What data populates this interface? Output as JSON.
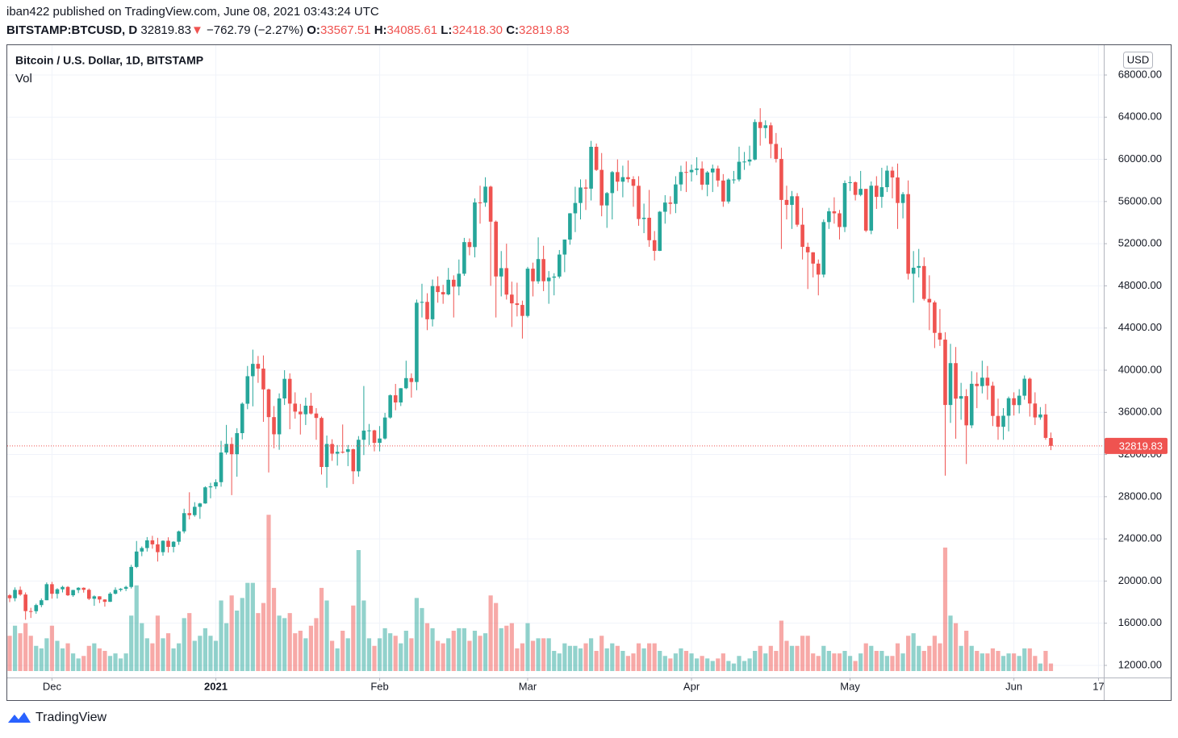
{
  "header": {
    "published": "iban422 published on TradingView.com, June 08, 2021 03:43:24 UTC",
    "symbol": "BITSTAMP:BTCUSD, D",
    "arrow": "▼",
    "change": "−762.79 (−2.27%)",
    "o_label": "O:",
    "h_label": "H:",
    "l_label": "L:",
    "c_label": "C:"
  },
  "chart_data": {
    "type": "candlestick",
    "title": "Bitcoin / U.S. Dollar, 1D, BITSTAMP",
    "volume_title": "Vol",
    "currency": "USD",
    "up_color": "#26a69a",
    "down_color": "#ef5350",
    "volume_opacity": 0.5,
    "grid": true,
    "ylim": [
      10850,
      70830
    ],
    "yticks": [
      {
        "value": 12000,
        "label": "12000.00"
      },
      {
        "value": 16000,
        "label": "16000.00"
      },
      {
        "value": 20000,
        "label": "20000.00"
      },
      {
        "value": 24000,
        "label": "24000.00"
      },
      {
        "value": 28000,
        "label": "28000.00"
      },
      {
        "value": 32000,
        "label": "32000.00"
      },
      {
        "value": 36000,
        "label": "36000.00"
      },
      {
        "value": 40000,
        "label": "40000.00"
      },
      {
        "value": 44000,
        "label": "44000.00"
      },
      {
        "value": 48000,
        "label": "48000.00"
      },
      {
        "value": 52000,
        "label": "52000.00"
      },
      {
        "value": 56000,
        "label": "56000.00"
      },
      {
        "value": 60000,
        "label": "60000.00"
      },
      {
        "value": 64000,
        "label": "64000.00"
      },
      {
        "value": 68000,
        "label": "68000.00"
      }
    ],
    "xlim": [
      -0.46,
      207
    ],
    "xticks": [
      {
        "value": 8,
        "label": "Dec"
      },
      {
        "value": 39,
        "label": "2021",
        "bold": true
      },
      {
        "value": 70,
        "label": "Feb"
      },
      {
        "value": 98,
        "label": "Mar"
      },
      {
        "value": 129,
        "label": "Apr"
      },
      {
        "value": 159,
        "label": "May"
      },
      {
        "value": 190,
        "label": "Jun"
      },
      {
        "value": 206,
        "label": "17"
      }
    ],
    "volume_lim": [
      0,
      40000
    ],
    "last_value_labels": [
      "33567.51",
      "34085.61",
      "32418.30",
      "32819.83"
    ],
    "candles": [
      [
        18650,
        18760,
        18000,
        18370
      ],
      [
        18370,
        19400,
        18080,
        19160
      ],
      [
        19160,
        19480,
        18600,
        18720
      ],
      [
        18720,
        18920,
        16330,
        17150
      ],
      [
        17150,
        17460,
        16500,
        17140
      ],
      [
        17140,
        17850,
        16900,
        17720
      ],
      [
        17720,
        18350,
        17520,
        18180
      ],
      [
        18180,
        19870,
        18180,
        19700
      ],
      [
        19700,
        19920,
        18330,
        18790
      ],
      [
        18790,
        19320,
        18340,
        19220
      ],
      [
        19220,
        19550,
        18920,
        19440
      ],
      [
        19440,
        19520,
        18580,
        18650
      ],
      [
        18650,
        19170,
        18500,
        19150
      ],
      [
        19150,
        19420,
        18860,
        19360
      ],
      [
        19360,
        19400,
        18900,
        19170
      ],
      [
        19170,
        19290,
        18200,
        18320
      ],
      [
        18320,
        18640,
        17650,
        18550
      ],
      [
        18550,
        18560,
        17910,
        18250
      ],
      [
        18250,
        18280,
        17570,
        18030
      ],
      [
        18030,
        18940,
        18020,
        18800
      ],
      [
        18800,
        19400,
        18730,
        19160
      ],
      [
        19160,
        19330,
        19000,
        19270
      ],
      [
        19270,
        19550,
        19050,
        19440
      ],
      [
        19440,
        21540,
        19290,
        21340
      ],
      [
        21340,
        23800,
        21230,
        22800
      ],
      [
        22800,
        23280,
        22360,
        23130
      ],
      [
        23130,
        24170,
        22800,
        23860
      ],
      [
        23860,
        24290,
        23070,
        23480
      ],
      [
        23480,
        24100,
        21850,
        22740
      ],
      [
        22740,
        23860,
        22400,
        23820
      ],
      [
        23820,
        24150,
        22700,
        23240
      ],
      [
        23240,
        23790,
        22720,
        23730
      ],
      [
        23730,
        24790,
        23430,
        24710
      ],
      [
        24710,
        26860,
        24520,
        26440
      ],
      [
        26440,
        28420,
        25850,
        26250
      ],
      [
        26250,
        27480,
        26100,
        27040
      ],
      [
        27040,
        27420,
        25900,
        27360
      ],
      [
        27360,
        28990,
        27330,
        28890
      ],
      [
        28890,
        29320,
        27850,
        28980
      ],
      [
        28980,
        29650,
        28730,
        29380
      ],
      [
        29380,
        33300,
        28950,
        32190
      ],
      [
        32190,
        34810,
        32000,
        33000
      ],
      [
        33000,
        33620,
        28150,
        32030
      ],
      [
        32030,
        34500,
        29900,
        34030
      ],
      [
        34030,
        36950,
        33440,
        36820
      ],
      [
        36820,
        40400,
        36300,
        39430
      ],
      [
        39430,
        41950,
        36570,
        40600
      ],
      [
        40600,
        41350,
        38800,
        40150
      ],
      [
        40150,
        41400,
        35100,
        38180
      ],
      [
        38180,
        38250,
        30300,
        35550
      ],
      [
        35550,
        36600,
        32600,
        33920
      ],
      [
        33920,
        37800,
        32450,
        37320
      ],
      [
        37320,
        40000,
        36700,
        39180
      ],
      [
        39180,
        39700,
        34400,
        36830
      ],
      [
        36830,
        37900,
        35400,
        36070
      ],
      [
        36070,
        36800,
        33900,
        35820
      ],
      [
        35820,
        37400,
        34800,
        36630
      ],
      [
        36630,
        37850,
        35800,
        35890
      ],
      [
        35890,
        36400,
        33400,
        35470
      ],
      [
        35470,
        35600,
        30100,
        30820
      ],
      [
        30820,
        33800,
        28850,
        33000
      ],
      [
        33000,
        33450,
        31400,
        32080
      ],
      [
        32080,
        32900,
        30950,
        32260
      ],
      [
        32260,
        34850,
        32100,
        32250
      ],
      [
        32250,
        32900,
        30900,
        32500
      ],
      [
        32500,
        32560,
        29200,
        30410
      ],
      [
        30410,
        33750,
        29900,
        33400
      ],
      [
        33400,
        38500,
        31950,
        34270
      ],
      [
        34270,
        34900,
        32900,
        34290
      ],
      [
        34290,
        34350,
        32300,
        33110
      ],
      [
        33110,
        34700,
        32300,
        33520
      ],
      [
        33520,
        35950,
        33420,
        35510
      ],
      [
        35510,
        37700,
        35400,
        37620
      ],
      [
        37620,
        38700,
        36200,
        36940
      ],
      [
        36940,
        38300,
        36600,
        38290
      ],
      [
        38290,
        40900,
        38200,
        39250
      ],
      [
        39250,
        39700,
        37400,
        38880
      ],
      [
        38880,
        46700,
        38100,
        46400
      ],
      [
        46400,
        48200,
        45000,
        46480
      ],
      [
        46480,
        47300,
        43800,
        44830
      ],
      [
        44830,
        48600,
        44150,
        47980
      ],
      [
        47980,
        48900,
        46400,
        47410
      ],
      [
        47410,
        48100,
        46300,
        47190
      ],
      [
        47190,
        49700,
        47100,
        48580
      ],
      [
        48580,
        49000,
        45000,
        47930
      ],
      [
        47930,
        50500,
        47100,
        49150
      ],
      [
        49150,
        52550,
        48950,
        52150
      ],
      [
        52150,
        52500,
        50900,
        51680
      ],
      [
        51680,
        56300,
        50700,
        55910
      ],
      [
        55910,
        57500,
        53900,
        55890
      ],
      [
        55890,
        58300,
        55500,
        57410
      ],
      [
        57410,
        57500,
        48000,
        54090
      ],
      [
        54090,
        54200,
        45000,
        48890
      ],
      [
        48890,
        51300,
        47000,
        49680
      ],
      [
        49680,
        52000,
        46700,
        47170
      ],
      [
        47170,
        48400,
        44100,
        46340
      ],
      [
        46340,
        48300,
        45100,
        46190
      ],
      [
        46190,
        46600,
        43000,
        45150
      ],
      [
        45150,
        49800,
        45000,
        49630
      ],
      [
        49630,
        50200,
        47000,
        48430
      ],
      [
        48430,
        52600,
        48200,
        50540
      ],
      [
        50540,
        51800,
        47500,
        48440
      ],
      [
        48440,
        49400,
        46300,
        48780
      ],
      [
        48780,
        49200,
        47100,
        48880
      ],
      [
        48880,
        51400,
        48700,
        50970
      ],
      [
        50970,
        52400,
        49300,
        52390
      ],
      [
        52390,
        54900,
        51900,
        54880
      ],
      [
        54880,
        57400,
        53100,
        55860
      ],
      [
        55860,
        58100,
        54300,
        57330
      ],
      [
        57330,
        58100,
        55200,
        57220
      ],
      [
        57220,
        61750,
        56100,
        61190
      ],
      [
        61190,
        61500,
        58900,
        59000
      ],
      [
        59000,
        60600,
        54600,
        55630
      ],
      [
        55630,
        56900,
        53500,
        56800
      ],
      [
        56800,
        58900,
        54300,
        58790
      ],
      [
        58790,
        60000,
        57000,
        57880
      ],
      [
        57880,
        59400,
        56400,
        58310
      ],
      [
        58310,
        59900,
        57800,
        58120
      ],
      [
        58120,
        58400,
        55500,
        57490
      ],
      [
        57490,
        58400,
        53700,
        54340
      ],
      [
        54340,
        55800,
        53000,
        54460
      ],
      [
        54460,
        57100,
        51700,
        52330
      ],
      [
        52330,
        53200,
        50400,
        51320
      ],
      [
        51320,
        55100,
        51300,
        55030
      ],
      [
        55030,
        56600,
        53900,
        55900
      ],
      [
        55900,
        56500,
        54800,
        55780
      ],
      [
        55780,
        58400,
        54900,
        57620
      ],
      [
        57620,
        59400,
        57000,
        58800
      ],
      [
        58800,
        59800,
        56900,
        58780
      ],
      [
        58780,
        59500,
        57900,
        59000
      ],
      [
        59000,
        60200,
        58500,
        59130
      ],
      [
        59130,
        59800,
        57100,
        57600
      ],
      [
        57600,
        58900,
        56500,
        58760
      ],
      [
        58760,
        59500,
        56900,
        59130
      ],
      [
        59130,
        59400,
        57400,
        57990
      ],
      [
        57990,
        58600,
        55500,
        56000
      ],
      [
        56000,
        58200,
        55800,
        58080
      ],
      [
        58080,
        58900,
        57700,
        58090
      ],
      [
        58090,
        61200,
        57900,
        59770
      ],
      [
        59770,
        60700,
        59000,
        59790
      ],
      [
        59790,
        61300,
        59400,
        59980
      ],
      [
        59980,
        63800,
        59900,
        63540
      ],
      [
        63540,
        64850,
        61300,
        62970
      ],
      [
        62970,
        63700,
        62000,
        63230
      ],
      [
        63230,
        63500,
        60100,
        61460
      ],
      [
        61460,
        62500,
        59700,
        60040
      ],
      [
        60040,
        61100,
        51500,
        56150
      ],
      [
        56150,
        57500,
        54300,
        55680
      ],
      [
        55680,
        57000,
        53400,
        56500
      ],
      [
        56500,
        56800,
        53600,
        53800
      ],
      [
        53800,
        55400,
        50500,
        51700
      ],
      [
        51700,
        52100,
        47700,
        51180
      ],
      [
        51180,
        51200,
        48800,
        50110
      ],
      [
        50110,
        50500,
        47100,
        49070
      ],
      [
        49070,
        54300,
        48800,
        54050
      ],
      [
        54050,
        55400,
        53400,
        55070
      ],
      [
        55070,
        56400,
        53900,
        54880
      ],
      [
        54880,
        55200,
        52400,
        53580
      ],
      [
        53580,
        58000,
        53100,
        57750
      ],
      [
        57750,
        58400,
        57000,
        57830
      ],
      [
        57830,
        57900,
        56100,
        56630
      ],
      [
        56630,
        58900,
        56500,
        57200
      ],
      [
        57200,
        57200,
        53100,
        53240
      ],
      [
        53240,
        57900,
        52900,
        57500
      ],
      [
        57500,
        58400,
        55300,
        56440
      ],
      [
        56440,
        59200,
        55400,
        57360
      ],
      [
        57360,
        59400,
        56900,
        58930
      ],
      [
        58930,
        59300,
        56300,
        58280
      ],
      [
        58280,
        59600,
        53400,
        55860
      ],
      [
        55860,
        56900,
        54400,
        56700
      ],
      [
        56700,
        58000,
        48600,
        49150
      ],
      [
        49150,
        51300,
        46400,
        49720
      ],
      [
        49720,
        51500,
        48800,
        49880
      ],
      [
        49880,
        50700,
        46600,
        46760
      ],
      [
        46760,
        49000,
        43800,
        46430
      ],
      [
        46430,
        46600,
        42100,
        43540
      ],
      [
        43540,
        45800,
        42300,
        42900
      ],
      [
        42900,
        43600,
        30000,
        36700
      ],
      [
        36700,
        42500,
        35000,
        40670
      ],
      [
        40670,
        42200,
        33500,
        37300
      ],
      [
        37300,
        38800,
        35300,
        37540
      ],
      [
        37540,
        38200,
        31100,
        34770
      ],
      [
        34770,
        39900,
        34500,
        38710
      ],
      [
        38710,
        39800,
        36400,
        38490
      ],
      [
        38490,
        40900,
        37800,
        39290
      ],
      [
        39290,
        40400,
        37200,
        38530
      ],
      [
        38530,
        38900,
        34700,
        35660
      ],
      [
        35660,
        37300,
        33400,
        34630
      ],
      [
        34630,
        36400,
        33400,
        35680
      ],
      [
        35680,
        37500,
        34200,
        37340
      ],
      [
        37340,
        37900,
        35700,
        36690
      ],
      [
        36690,
        38200,
        35900,
        37580
      ],
      [
        37580,
        39500,
        37200,
        39190
      ],
      [
        39190,
        39300,
        35600,
        36840
      ],
      [
        36840,
        37900,
        34800,
        35520
      ],
      [
        35520,
        36500,
        35300,
        35800
      ],
      [
        35800,
        36800,
        33400,
        33580
      ],
      [
        33567.51,
        34085.61,
        32418.3,
        32819.83
      ]
    ],
    "volume": [
      7000,
      9000,
      7500,
      9500,
      7000,
      5000,
      4500,
      6500,
      9000,
      6000,
      4500,
      5500,
      3500,
      2500,
      3000,
      5000,
      5500,
      4500,
      4000,
      3000,
      3500,
      2500,
      3500,
      11000,
      17000,
      9500,
      6500,
      5500,
      11000,
      6500,
      7500,
      4500,
      5500,
      10500,
      11500,
      6000,
      7000,
      8500,
      7000,
      6000,
      14000,
      9500,
      15000,
      12000,
      14500,
      17500,
      17500,
      11500,
      13500,
      31000,
      16500,
      11000,
      10500,
      11500,
      7500,
      8000,
      6500,
      9000,
      10500,
      16500,
      14000,
      6000,
      4500,
      8000,
      6500,
      13000,
      24000,
      14000,
      6500,
      5000,
      6500,
      8500,
      7500,
      7000,
      5500,
      8000,
      6500,
      14500,
      12500,
      9500,
      8500,
      6000,
      5500,
      6500,
      8000,
      8500,
      8500,
      6000,
      8000,
      7000,
      7500,
      15000,
      13500,
      8500,
      9000,
      9500,
      4500,
      5500,
      9500,
      6000,
      6500,
      6500,
      6500,
      4000,
      3500,
      5500,
      5000,
      5000,
      4500,
      5500,
      6500,
      4000,
      7000,
      4500,
      5500,
      5000,
      4000,
      3000,
      3500,
      5500,
      4500,
      5500,
      5500,
      4000,
      3000,
      2500,
      3500,
      4500,
      4000,
      3500,
      2500,
      3000,
      2500,
      2000,
      2500,
      3500,
      2000,
      1500,
      3000,
      2000,
      2500,
      4000,
      5000,
      3500,
      5000,
      4000,
      10000,
      6000,
      5000,
      5000,
      7000,
      7000,
      3500,
      3000,
      5000,
      4000,
      3500,
      3500,
      4000,
      3000,
      2000,
      3500,
      5500,
      5000,
      4000,
      4000,
      3000,
      3000,
      5500,
      3500,
      7000,
      7500,
      5000,
      4000,
      5000,
      7000,
      5500,
      24500,
      11000,
      9500,
      5000,
      8000,
      5000,
      4000,
      3500,
      3500,
      4500,
      4000,
      3000,
      3500,
      3500,
      3000,
      4500,
      4500,
      3000,
      1500,
      4000,
      1500
    ]
  },
  "footer": {
    "brand": "TradingView"
  }
}
